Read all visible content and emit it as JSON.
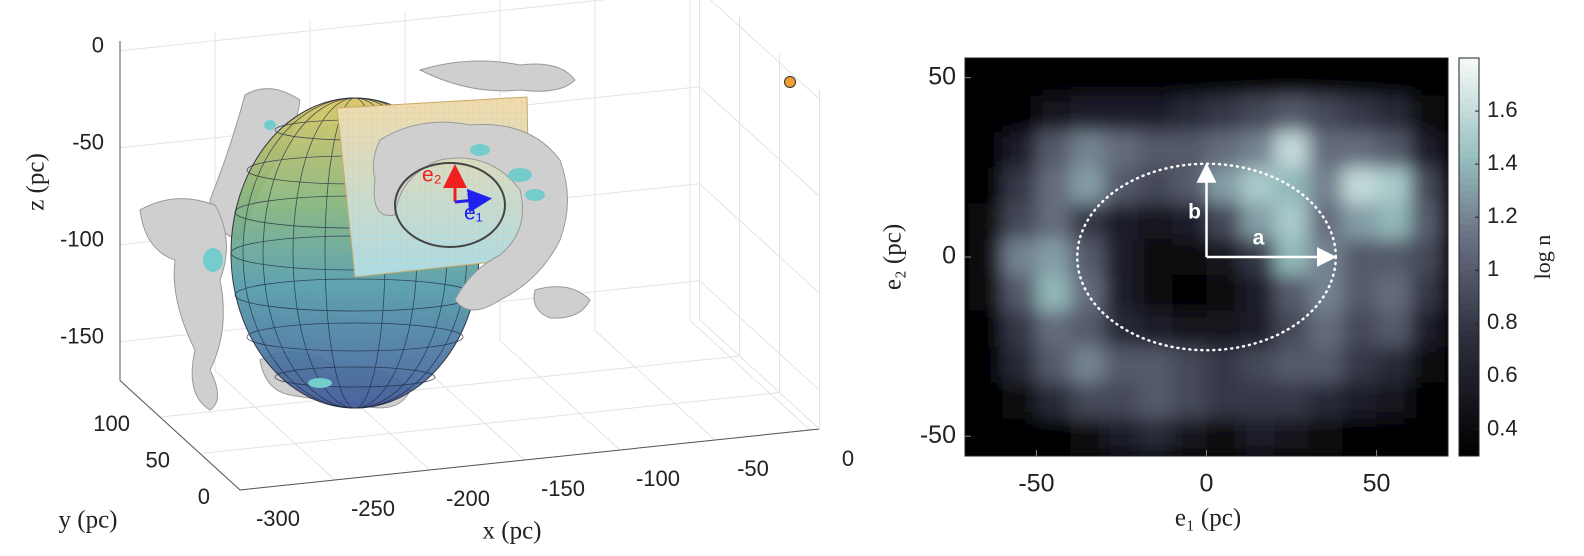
{
  "chart_data": [
    {
      "type": "surface3d",
      "xlabel": "x (pc)",
      "ylabel": "y (pc)",
      "zlabel": "z (pc)",
      "xlim": [
        -300,
        5
      ],
      "ylim": [
        0,
        150
      ],
      "zlim": [
        -170,
        5
      ],
      "xticks": [
        -300,
        -250,
        -200,
        -150,
        -100,
        -50,
        0
      ],
      "yticks": [
        0,
        50,
        100
      ],
      "zticks": [
        -150,
        -100,
        -50,
        0
      ],
      "annotations": [
        "e₂",
        "e₁"
      ]
    },
    {
      "type": "heatmap",
      "xlabel": "e₁ (pc)",
      "ylabel": "e₂ (pc)",
      "colorbar_label": "log n",
      "xlim": [
        -71,
        71
      ],
      "ylim": [
        -55.5,
        55.5
      ],
      "clim": [
        0.3,
        1.8
      ],
      "xticks": [
        -50,
        0,
        50
      ],
      "yticks": [
        -50,
        0,
        50
      ],
      "cticks": [
        0.4,
        0.6,
        0.8,
        1,
        1.2,
        1.4,
        1.6
      ],
      "xbins": [
        -70,
        -60,
        -50,
        -40,
        -30,
        -20,
        -10,
        0,
        10,
        20,
        30,
        40,
        50,
        60,
        70
      ],
      "ybins": [
        55,
        45,
        35,
        25,
        15,
        5,
        -5,
        -15,
        -25,
        -35,
        -45,
        -55
      ],
      "z": [
        [
          0.3,
          0.3,
          0.3,
          0.3,
          0.3,
          0.3,
          0.3,
          0.3,
          0.3,
          0.3,
          0.3,
          0.3,
          0.3,
          0.3
        ],
        [
          0.3,
          0.3,
          0.5,
          0.6,
          0.6,
          0.6,
          0.7,
          0.8,
          0.9,
          1.0,
          0.9,
          0.8,
          0.7,
          0.4
        ],
        [
          0.3,
          0.6,
          1.0,
          1.2,
          1.1,
          1.0,
          1.0,
          1.1,
          1.2,
          1.6,
          1.1,
          1.1,
          1.0,
          0.6
        ],
        [
          0.3,
          0.8,
          1.1,
          1.3,
          1.0,
          0.9,
          1.0,
          1.3,
          1.5,
          1.4,
          1.2,
          1.6,
          1.5,
          0.9
        ],
        [
          0.4,
          0.9,
          1.1,
          0.8,
          0.6,
          0.5,
          0.6,
          0.9,
          1.3,
          1.5,
          1.1,
          1.3,
          1.4,
          1.0
        ],
        [
          0.4,
          1.2,
          1.3,
          1.0,
          0.6,
          0.4,
          0.4,
          0.5,
          0.8,
          1.4,
          1.2,
          1.0,
          1.0,
          0.9
        ],
        [
          0.4,
          1.0,
          1.4,
          1.1,
          0.6,
          0.4,
          0.3,
          0.4,
          0.6,
          1.0,
          1.2,
          1.0,
          1.1,
          0.8
        ],
        [
          0.3,
          0.8,
          1.1,
          1.0,
          0.7,
          0.6,
          0.5,
          0.5,
          0.6,
          0.9,
          1.1,
          0.9,
          1.0,
          0.6
        ],
        [
          0.3,
          0.7,
          1.0,
          1.2,
          1.0,
          1.0,
          0.9,
          0.8,
          0.9,
          1.0,
          1.0,
          0.8,
          0.7,
          0.4
        ],
        [
          0.3,
          0.4,
          0.7,
          0.9,
          0.9,
          1.0,
          0.9,
          0.8,
          0.8,
          0.8,
          0.7,
          0.6,
          0.5,
          0.3
        ],
        [
          0.3,
          0.3,
          0.3,
          0.4,
          0.6,
          0.7,
          0.5,
          0.4,
          0.6,
          0.5,
          0.4,
          0.3,
          0.3,
          0.3
        ]
      ],
      "ellipse": {
        "a": 38,
        "b": 26
      },
      "annotations": [
        "a",
        "b"
      ]
    }
  ]
}
